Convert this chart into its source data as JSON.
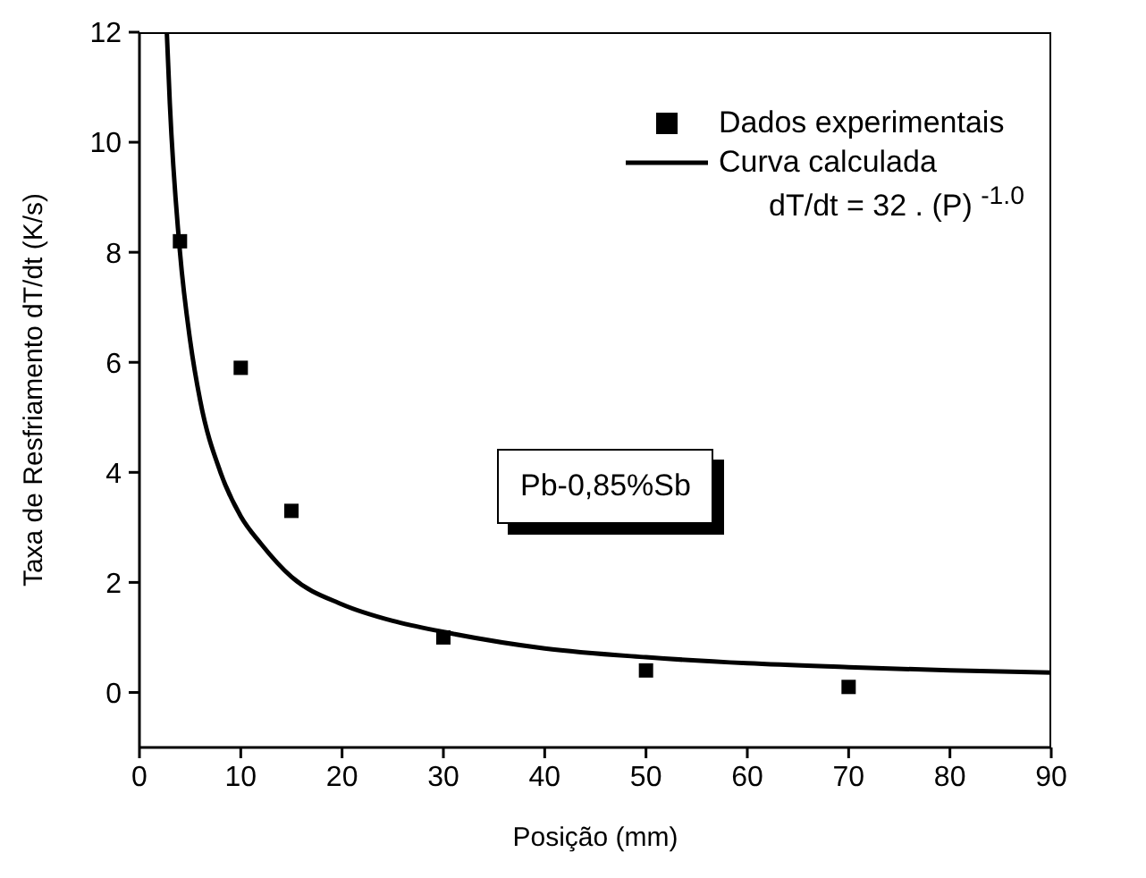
{
  "chart_data": {
    "type": "scatter",
    "xlabel": "Posição (mm)",
    "ylabel": "Taxa de Resfriamento     dT/dt     (K/s)",
    "xlim": [
      0,
      90
    ],
    "xticks": [
      0,
      10,
      20,
      30,
      40,
      50,
      60,
      70,
      80,
      90
    ],
    "ylim": [
      -1,
      12
    ],
    "yticks": [
      0,
      2,
      4,
      6,
      8,
      10,
      12
    ],
    "legend": "top right",
    "marker": "square",
    "series": [
      {
        "name": "Dados experimentais",
        "color": "#000000",
        "x": [
          4,
          10,
          15,
          30,
          50,
          70
        ],
        "values": [
          8.2,
          5.9,
          3.3,
          1.0,
          0.4,
          0.1
        ]
      },
      {
        "name": "Curva calculada",
        "type": "line",
        "color": "#000000",
        "marker": "none",
        "line_style": "solid",
        "x": [
          2.7,
          3,
          4,
          5,
          6,
          8,
          10,
          12,
          15,
          20,
          25,
          30,
          40,
          50,
          60,
          70,
          80,
          90
        ],
        "values": [
          12,
          10.7,
          8,
          6.4,
          5.3,
          4,
          3.2,
          2.7,
          2.1,
          1.6,
          1.3,
          1.1,
          0.8,
          0.64,
          0.53,
          0.46,
          0.4,
          0.36
        ]
      }
    ],
    "annotations": [
      "dT/dt = 32 . (P) $^{-1.0}$",
      "Pb-0,85%Sb"
    ]
  }
}
